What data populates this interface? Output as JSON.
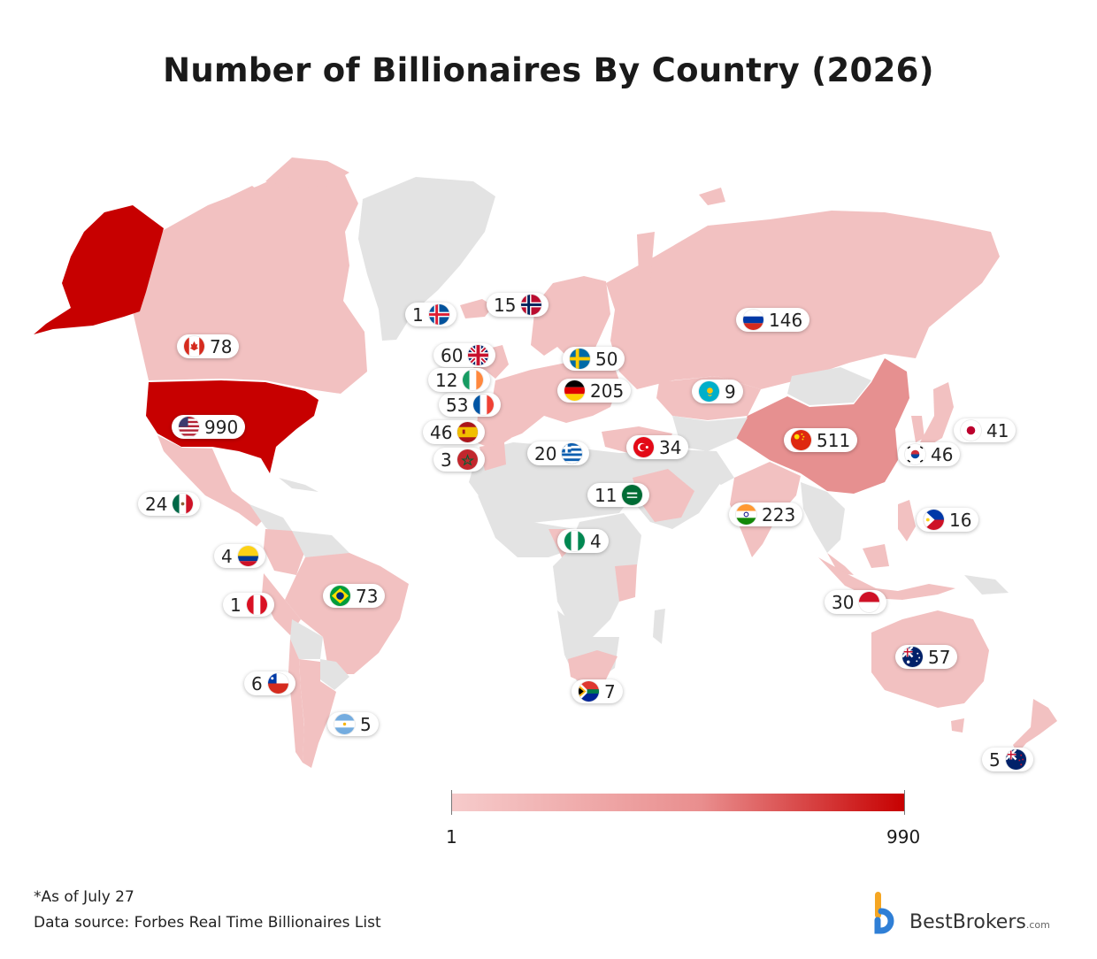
{
  "title": "Number of Billionaires By Country (2026)",
  "colors": {
    "low": "#f6cbcb",
    "mid": "#e98e8e",
    "high": "#c70000",
    "no_data": "#e3e3e3"
  },
  "scale": {
    "min_label": "1",
    "max_label": "990"
  },
  "footnotes": {
    "as_of": "*As of July 27",
    "source": "Data source: Forbes Real Time Billionaires List"
  },
  "logo": {
    "name": "BestBrokers",
    "suffix": ".com"
  },
  "countries": [
    {
      "country": "United States",
      "value": 990,
      "label": "990",
      "flag": "us"
    },
    {
      "country": "China",
      "value": 511,
      "label": "511",
      "flag": "cn"
    },
    {
      "country": "India",
      "value": 223,
      "label": "223",
      "flag": "in"
    },
    {
      "country": "Germany",
      "value": 205,
      "label": "205",
      "flag": "de"
    },
    {
      "country": "Russia",
      "value": 146,
      "label": "146",
      "flag": "ru"
    },
    {
      "country": "Canada",
      "value": 78,
      "label": "78",
      "flag": "ca"
    },
    {
      "country": "Brazil",
      "value": 73,
      "label": "73",
      "flag": "br"
    },
    {
      "country": "United Kingdom",
      "value": 60,
      "label": "60",
      "flag": "gb"
    },
    {
      "country": "Australia",
      "value": 57,
      "label": "57",
      "flag": "au"
    },
    {
      "country": "France",
      "value": 53,
      "label": "53",
      "flag": "fr"
    },
    {
      "country": "Sweden",
      "value": 50,
      "label": "50",
      "flag": "se"
    },
    {
      "country": "Spain",
      "value": 46,
      "label": "46",
      "flag": "es"
    },
    {
      "country": "South Korea",
      "value": 46,
      "label": "46",
      "flag": "kr"
    },
    {
      "country": "Japan",
      "value": 41,
      "label": "41",
      "flag": "jp"
    },
    {
      "country": "Turkey",
      "value": 34,
      "label": "34",
      "flag": "tr"
    },
    {
      "country": "Indonesia",
      "value": 30,
      "label": "30",
      "flag": "id"
    },
    {
      "country": "Mexico",
      "value": 24,
      "label": "24",
      "flag": "mx"
    },
    {
      "country": "Greece",
      "value": 20,
      "label": "20",
      "flag": "gr"
    },
    {
      "country": "Philippines",
      "value": 16,
      "label": "16",
      "flag": "ph"
    },
    {
      "country": "Norway",
      "value": 15,
      "label": "15",
      "flag": "no"
    },
    {
      "country": "Ireland",
      "value": 12,
      "label": "12",
      "flag": "ie"
    },
    {
      "country": "Saudi Arabia",
      "value": 11,
      "label": "11",
      "flag": "sa"
    },
    {
      "country": "Kazakhstan",
      "value": 9,
      "label": "9",
      "flag": "kz"
    },
    {
      "country": "South Africa",
      "value": 7,
      "label": "7",
      "flag": "za"
    },
    {
      "country": "Chile",
      "value": 6,
      "label": "6",
      "flag": "cl"
    },
    {
      "country": "Argentina",
      "value": 5,
      "label": "5",
      "flag": "ar"
    },
    {
      "country": "New Zealand",
      "value": 5,
      "label": "5",
      "flag": "nz"
    },
    {
      "country": "Colombia",
      "value": 4,
      "label": "4",
      "flag": "co"
    },
    {
      "country": "Nigeria",
      "value": 4,
      "label": "4",
      "flag": "ng"
    },
    {
      "country": "Morocco",
      "value": 3,
      "label": "3",
      "flag": "ma"
    },
    {
      "country": "Iceland",
      "value": 1,
      "label": "1",
      "flag": "is"
    },
    {
      "country": "Peru",
      "value": 1,
      "label": "1",
      "flag": "pe"
    }
  ]
}
